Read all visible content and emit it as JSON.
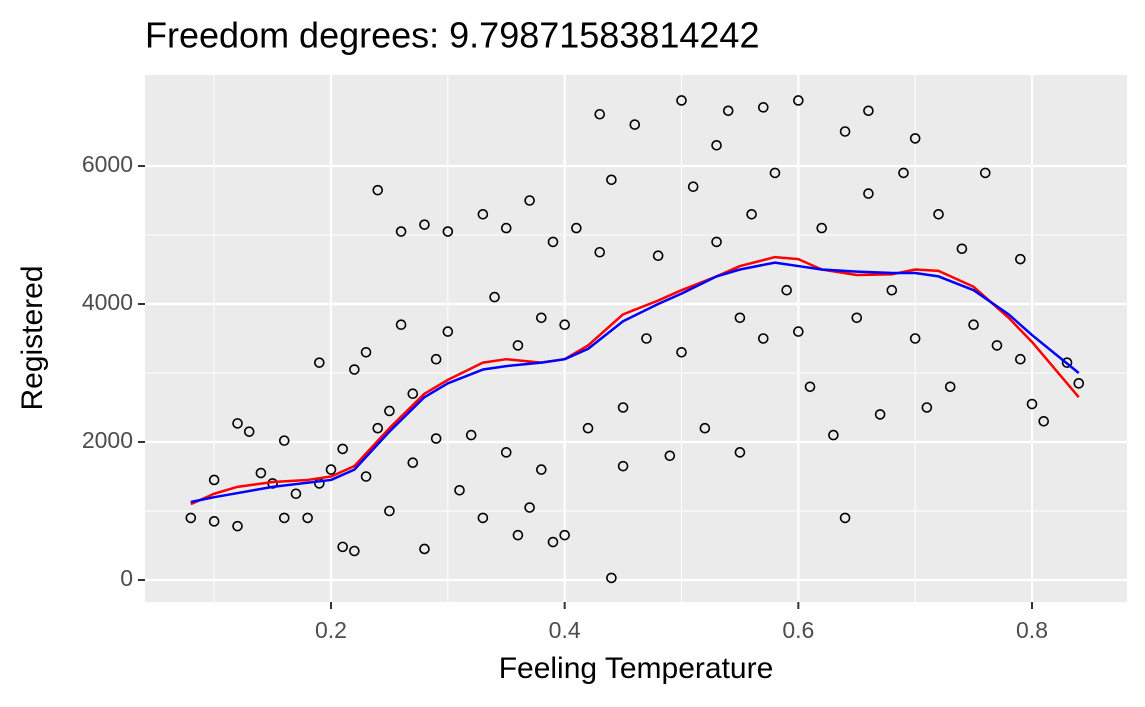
{
  "chart_data": {
    "type": "scatter",
    "title": "Freedom degrees: 9.79871583814242",
    "x_label": "Feeling Temperature",
    "y_label": "Registered",
    "xlim": [
      0.0408,
      0.8813
    ],
    "ylim": [
      -319,
      7319
    ],
    "xticks": [
      0.2,
      0.4,
      0.6,
      0.8
    ],
    "yticks": [
      0,
      2000,
      4000,
      6000
    ],
    "x_minor_ticks": [
      0.1,
      0.3,
      0.5,
      0.7
    ],
    "y_minor_ticks": [
      1000,
      3000,
      5000
    ],
    "grid": true,
    "points": {
      "color": "#000000",
      "x": [
        0.08,
        0.1,
        0.1,
        0.12,
        0.12,
        0.13,
        0.14,
        0.15,
        0.16,
        0.16,
        0.17,
        0.18,
        0.19,
        0.19,
        0.2,
        0.21,
        0.21,
        0.22,
        0.22,
        0.23,
        0.23,
        0.24,
        0.24,
        0.25,
        0.25,
        0.26,
        0.26,
        0.27,
        0.27,
        0.28,
        0.28,
        0.29,
        0.29,
        0.3,
        0.3,
        0.31,
        0.32,
        0.33,
        0.33,
        0.34,
        0.35,
        0.35,
        0.36,
        0.36,
        0.37,
        0.37,
        0.38,
        0.38,
        0.39,
        0.39,
        0.4,
        0.4,
        0.41,
        0.42,
        0.43,
        0.43,
        0.44,
        0.44,
        0.45,
        0.45,
        0.46,
        0.47,
        0.48,
        0.49,
        0.5,
        0.5,
        0.51,
        0.52,
        0.53,
        0.53,
        0.54,
        0.55,
        0.55,
        0.56,
        0.57,
        0.57,
        0.58,
        0.59,
        0.6,
        0.6,
        0.61,
        0.62,
        0.63,
        0.64,
        0.64,
        0.65,
        0.66,
        0.66,
        0.67,
        0.68,
        0.69,
        0.7,
        0.7,
        0.71,
        0.72,
        0.73,
        0.74,
        0.75,
        0.76,
        0.77,
        0.79,
        0.79,
        0.8,
        0.81,
        0.83,
        0.84
      ],
      "y": [
        900,
        850,
        1450,
        780,
        2270,
        2150,
        1550,
        1400,
        2020,
        900,
        1250,
        900,
        3150,
        1400,
        1600,
        480,
        1900,
        420,
        3050,
        1500,
        3300,
        2200,
        5650,
        2450,
        1000,
        5050,
        3700,
        2700,
        1700,
        5150,
        450,
        3200,
        2050,
        3600,
        5050,
        1300,
        2100,
        5300,
        900,
        4100,
        5100,
        1850,
        3400,
        650,
        5500,
        1050,
        3800,
        1600,
        4900,
        550,
        3700,
        650,
        5100,
        2200,
        6750,
        4750,
        30,
        5800,
        2500,
        1650,
        6600,
        3500,
        4700,
        1800,
        6950,
        3300,
        5700,
        2200,
        6300,
        4900,
        6800,
        1850,
        3800,
        5300,
        6850,
        3500,
        5900,
        4200,
        6950,
        3600,
        2800,
        5100,
        2100,
        6500,
        900,
        3800,
        6800,
        5600,
        2400,
        4200,
        5900,
        6400,
        3500,
        2500,
        5300,
        2800,
        4800,
        3700,
        5900,
        3400,
        4650,
        3200,
        2550,
        2300,
        3150,
        2850
      ]
    },
    "series": [
      {
        "color": "#ff0000",
        "x": [
          0.08,
          0.1,
          0.12,
          0.15,
          0.18,
          0.2,
          0.22,
          0.25,
          0.28,
          0.3,
          0.33,
          0.35,
          0.38,
          0.4,
          0.42,
          0.45,
          0.48,
          0.5,
          0.53,
          0.55,
          0.58,
          0.6,
          0.62,
          0.65,
          0.68,
          0.7,
          0.72,
          0.75,
          0.78,
          0.8,
          0.84
        ],
        "values": [
          1100,
          1250,
          1350,
          1420,
          1450,
          1500,
          1650,
          2200,
          2700,
          2900,
          3150,
          3200,
          3150,
          3200,
          3400,
          3850,
          4050,
          4200,
          4400,
          4550,
          4680,
          4650,
          4500,
          4420,
          4430,
          4500,
          4480,
          4250,
          3800,
          3450,
          2650
        ]
      },
      {
        "color": "#0000ff",
        "x": [
          0.08,
          0.1,
          0.15,
          0.2,
          0.22,
          0.25,
          0.28,
          0.3,
          0.33,
          0.35,
          0.38,
          0.4,
          0.42,
          0.45,
          0.48,
          0.5,
          0.53,
          0.55,
          0.58,
          0.6,
          0.62,
          0.65,
          0.68,
          0.7,
          0.72,
          0.75,
          0.78,
          0.8,
          0.84
        ],
        "values": [
          1130,
          1200,
          1350,
          1450,
          1600,
          2150,
          2650,
          2850,
          3050,
          3100,
          3150,
          3200,
          3350,
          3750,
          4000,
          4150,
          4400,
          4500,
          4600,
          4550,
          4500,
          4470,
          4450,
          4450,
          4400,
          4200,
          3850,
          3550,
          3000
        ]
      }
    ]
  }
}
